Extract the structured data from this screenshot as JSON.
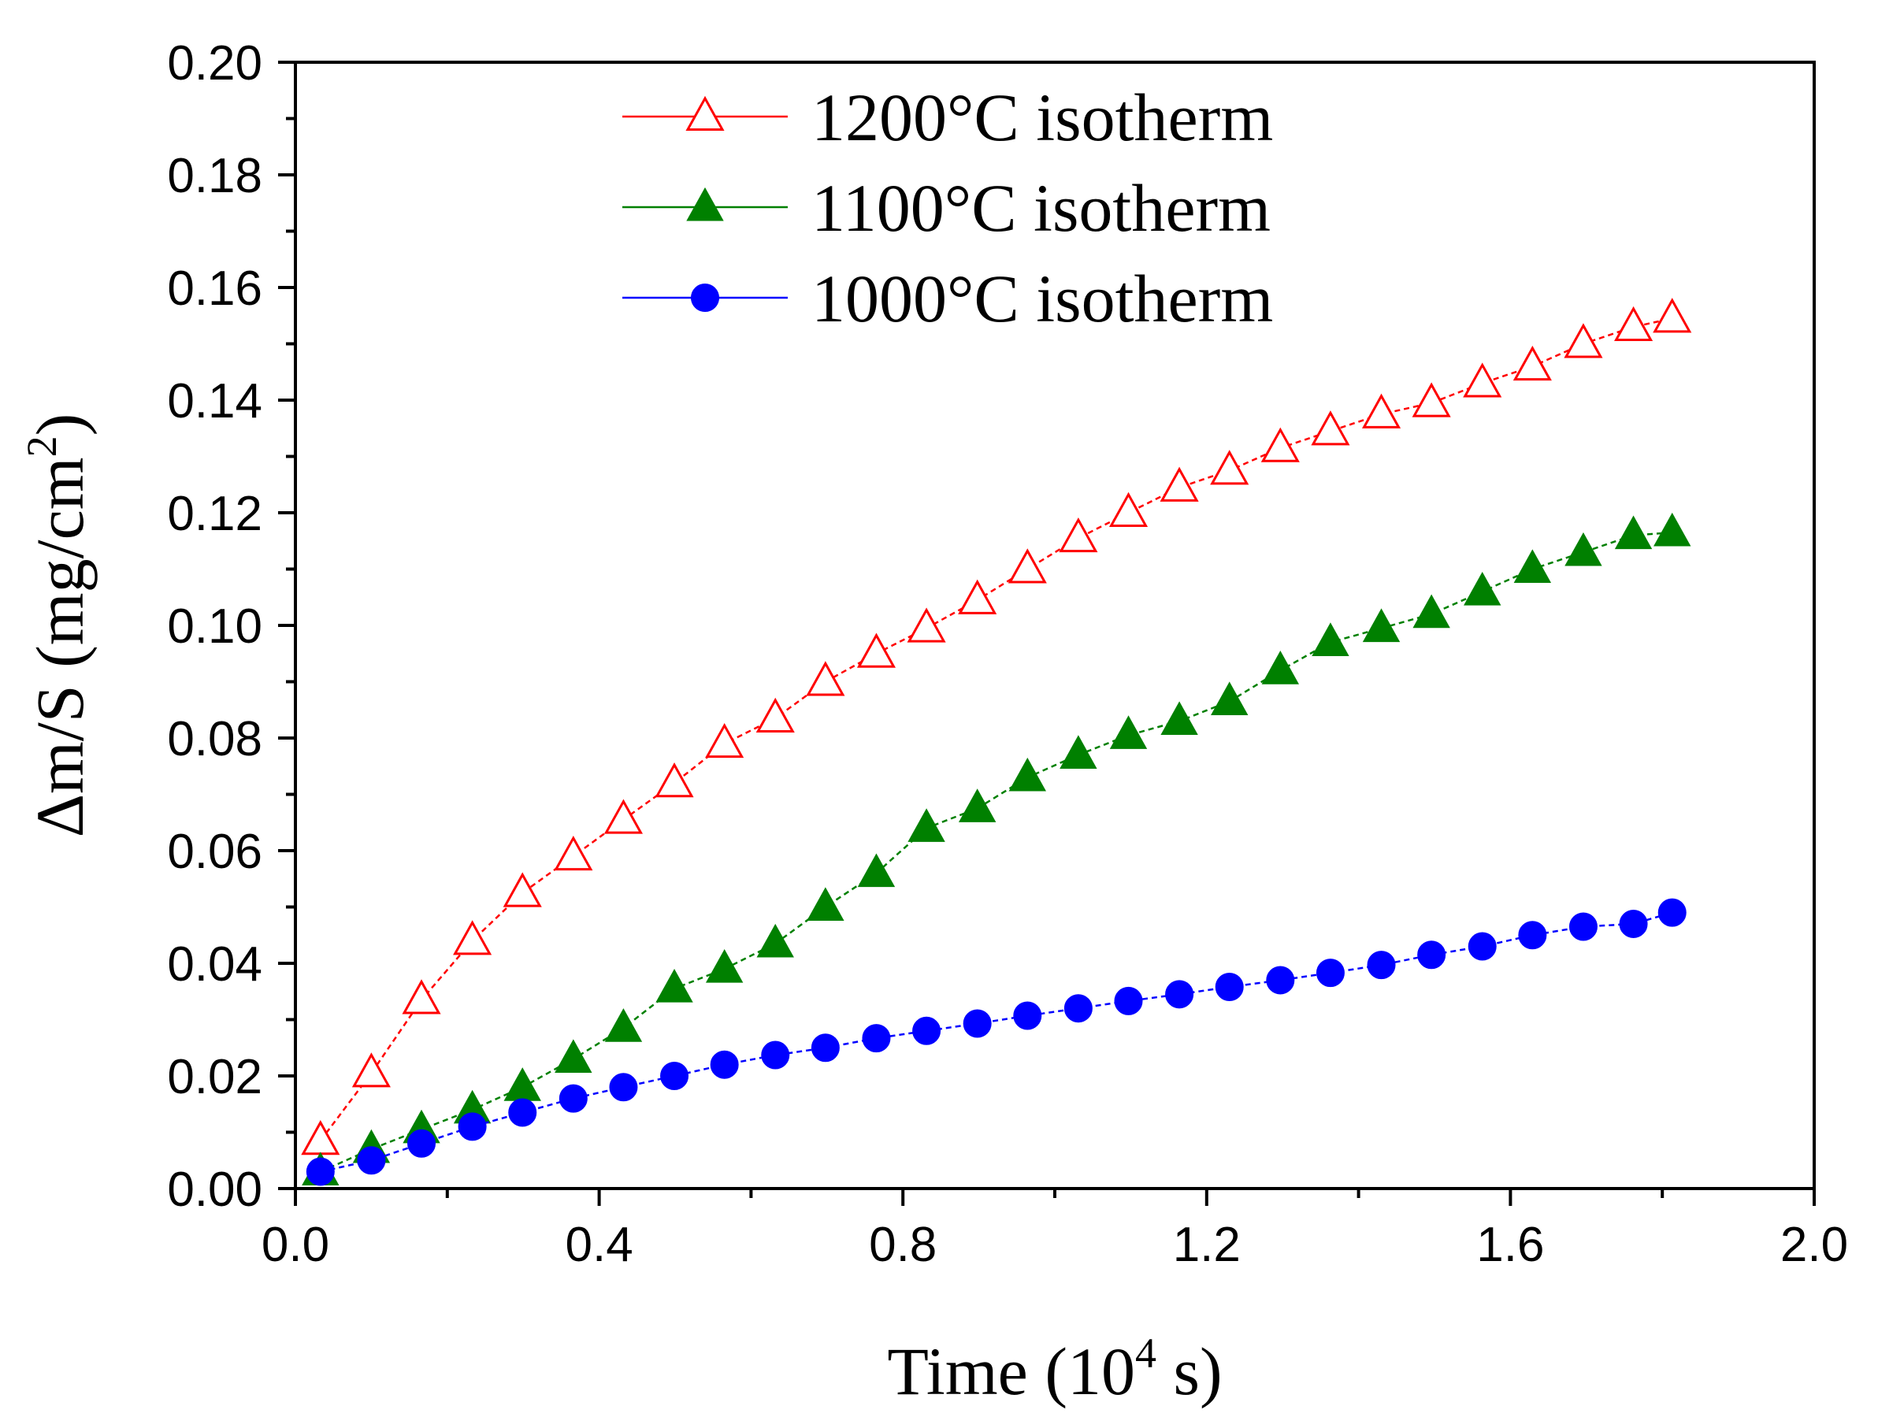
{
  "chart_data": {
    "type": "line",
    "title": "",
    "xlabel": "Time (10⁴ s)",
    "xlabel_parts": {
      "prefix": "Time (10",
      "sup": "4",
      "suffix": " s)"
    },
    "ylabel": "Δm/S (mg/cm²)",
    "ylabel_parts": {
      "prefix": "Δm/S (mg/cm",
      "sup": "2",
      "suffix": ")"
    },
    "xlim": [
      0.0,
      2.0
    ],
    "ylim": [
      0.0,
      0.2
    ],
    "xticks": [
      "0.0",
      "0.4",
      "0.8",
      "1.2",
      "1.6",
      "2.0"
    ],
    "xtick_values": [
      0.0,
      0.4,
      0.8,
      1.2,
      1.6,
      2.0
    ],
    "yticks": [
      "0.00",
      "0.02",
      "0.04",
      "0.06",
      "0.08",
      "0.10",
      "0.12",
      "0.14",
      "0.16",
      "0.18",
      "0.20"
    ],
    "ytick_values": [
      0.0,
      0.02,
      0.04,
      0.06,
      0.08,
      0.1,
      0.12,
      0.14,
      0.16,
      0.18,
      0.2
    ],
    "grid": false,
    "legend_position": "top-center",
    "x": [
      0.033,
      0.1,
      0.166,
      0.233,
      0.299,
      0.366,
      0.432,
      0.499,
      0.565,
      0.632,
      0.698,
      0.765,
      0.831,
      0.898,
      0.964,
      1.031,
      1.097,
      1.164,
      1.23,
      1.297,
      1.363,
      1.43,
      1.496,
      1.563,
      1.629,
      1.696,
      1.762,
      1.813
    ],
    "series": [
      {
        "name": "1200°C isotherm",
        "color": "#ff0000",
        "marker": "open-triangle",
        "values": [
          0.0085,
          0.0205,
          0.0335,
          0.044,
          0.0525,
          0.059,
          0.0655,
          0.072,
          0.079,
          0.0835,
          0.09,
          0.095,
          0.0995,
          0.1045,
          0.11,
          0.1155,
          0.12,
          0.1245,
          0.1275,
          0.1315,
          0.1345,
          0.1375,
          0.1395,
          0.143,
          0.146,
          0.15,
          0.153,
          0.1545
        ]
      },
      {
        "name": "1100°C isotherm",
        "color": "#008000",
        "marker": "filled-triangle",
        "values": [
          0.003,
          0.007,
          0.0105,
          0.014,
          0.018,
          0.023,
          0.0285,
          0.0355,
          0.039,
          0.0435,
          0.05,
          0.056,
          0.064,
          0.0675,
          0.073,
          0.077,
          0.0805,
          0.083,
          0.0865,
          0.092,
          0.097,
          0.0995,
          0.102,
          0.106,
          0.11,
          0.113,
          0.116,
          0.1165
        ]
      },
      {
        "name": "1000°C isotherm",
        "color": "#0000ff",
        "marker": "filled-circle",
        "values": [
          0.003,
          0.005,
          0.008,
          0.011,
          0.0135,
          0.016,
          0.018,
          0.02,
          0.022,
          0.0237,
          0.025,
          0.0267,
          0.028,
          0.0293,
          0.0307,
          0.032,
          0.0333,
          0.0345,
          0.0358,
          0.037,
          0.0383,
          0.0397,
          0.0415,
          0.043,
          0.045,
          0.0465,
          0.047,
          0.049
        ]
      }
    ]
  }
}
